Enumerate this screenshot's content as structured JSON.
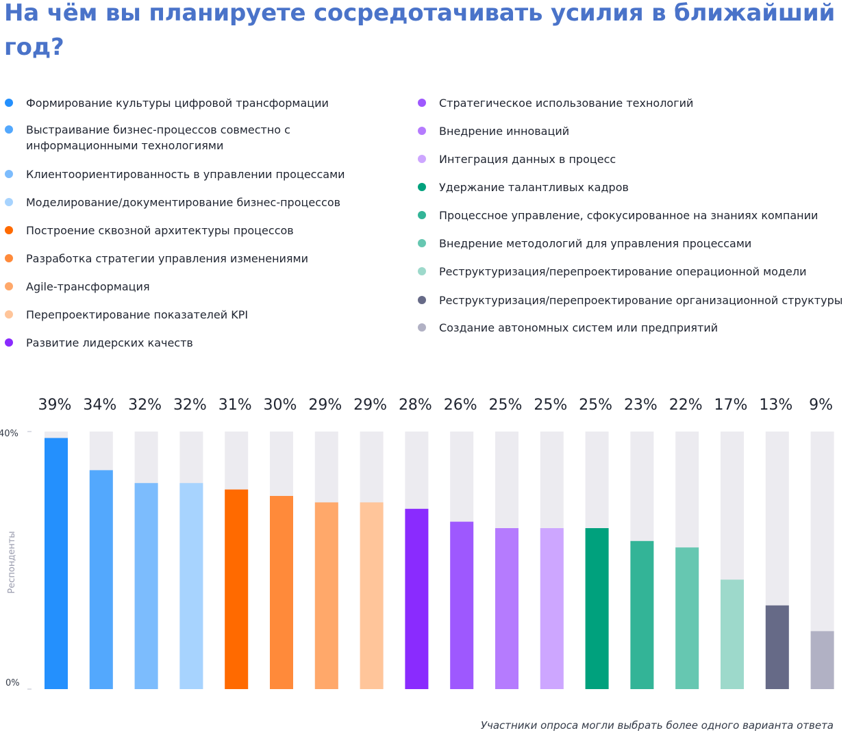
{
  "title": "На чём вы планируете сосредотачивать усилия в ближайший год?",
  "note": "Участники опроса могли выбрать более одного варианта ответа",
  "chart_data": {
    "type": "bar",
    "title": "На чём вы планируете сосредотачивать усилия в ближайший год?",
    "xlabel": "",
    "ylabel": "Респонденты",
    "ylim": [
      0,
      40
    ],
    "y_ticks": [
      "0%",
      "40%"
    ],
    "grid": false,
    "legend_position": "top",
    "categories": [
      "Формирование культуры цифровой трансформации",
      "Выстраивание бизнес-процессов совместно с информационными технологиями",
      "Клиентоориентированность в управлении процессами",
      "Моделирование/документирование бизнес-процессов",
      "Построение сквозной архитектуры процессов",
      "Разработка стратегии управления изменениями",
      "Agile-трансформация",
      "Перепроектирование показателей KPI",
      "Развитие лидерских качеств",
      "Стратегическое использование технологий",
      "Внедрение инноваций",
      "Интеграция данных в процесс",
      "Удержание талантливых кадров",
      "Процессное управление, сфокусированное на знаниях компании",
      "Внедрение методологий для управления процессами",
      "Реструктуризация/перепроектирование операционной модели",
      "Реструктуризация/перепроектирование организационной структуры",
      "Создание автономных систем или предприятий"
    ],
    "values": [
      39,
      34,
      32,
      32,
      31,
      30,
      29,
      29,
      28,
      26,
      25,
      25,
      25,
      23,
      22,
      17,
      13,
      9
    ],
    "value_labels": [
      "39%",
      "34%",
      "32%",
      "32%",
      "31%",
      "30%",
      "29%",
      "29%",
      "28%",
      "26%",
      "25%",
      "25%",
      "25%",
      "23%",
      "22%",
      "17%",
      "13%",
      "9%"
    ],
    "colors": [
      "#2490fd",
      "#53a8fd",
      "#7cbcfd",
      "#a7d3fe",
      "#ff6a00",
      "#ff8a3a",
      "#ffa86a",
      "#ffc59a",
      "#8a2bfe",
      "#9e58fe",
      "#b57bfe",
      "#cda6ff",
      "#00a17d",
      "#33b497",
      "#66c7b1",
      "#9dd9cb",
      "#666a87",
      "#b1b1c4"
    ],
    "track_color": "#ecebf0"
  }
}
